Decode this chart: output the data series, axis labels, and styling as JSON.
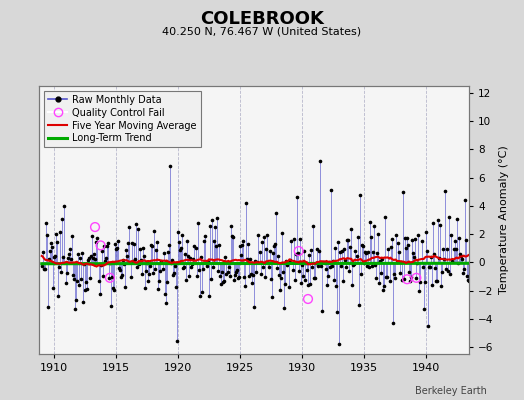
{
  "title": "COLEBROOK",
  "subtitle": "40.250 N, 76.467 W (United States)",
  "ylabel_right": "Temperature Anomaly (°C)",
  "credit": "Berkeley Earth",
  "year_start": 1909.0,
  "year_end": 1943.0,
  "ylim": [
    -6.5,
    12.5
  ],
  "yticks": [
    -6,
    -4,
    -2,
    0,
    2,
    4,
    6,
    8,
    10,
    12
  ],
  "xticks": [
    1910,
    1915,
    1920,
    1925,
    1930,
    1935,
    1940
  ],
  "bg_color": "#d8d8d8",
  "plot_bg_color": "#f5f5f5",
  "grid_color": "#b8b8cc",
  "line_color": "#5555cc",
  "dot_color": "#000000",
  "ma_color": "#dd0000",
  "trend_color": "#00aa00",
  "qc_color": "#ff44ff",
  "seed": 12345,
  "long_term_trend_value": -0.1,
  "trend_slope": 0.003,
  "noise_scale": 1.3,
  "qc_years": [
    1913.3,
    1913.75,
    1914.5,
    1929.75,
    1930.5,
    1938.5,
    1939.25
  ],
  "qc_values": [
    2.5,
    1.2,
    -1.1,
    0.8,
    -2.6,
    -1.2,
    -1.1
  ],
  "spike_years": [
    1909.5,
    1910.7,
    1919.3,
    1919.9,
    1921.6,
    1922.75,
    1925.5,
    1927.9,
    1929.6,
    1931.5,
    1932.3,
    1933.0,
    1934.7,
    1937.3,
    1938.2,
    1940.2,
    1941.9,
    1942.5
  ],
  "spike_values": [
    -3.2,
    3.1,
    6.8,
    -5.6,
    2.8,
    3.0,
    4.2,
    3.5,
    4.6,
    7.2,
    5.1,
    -5.8,
    4.8,
    -4.3,
    5.0,
    -4.5,
    3.2,
    3.1
  ]
}
